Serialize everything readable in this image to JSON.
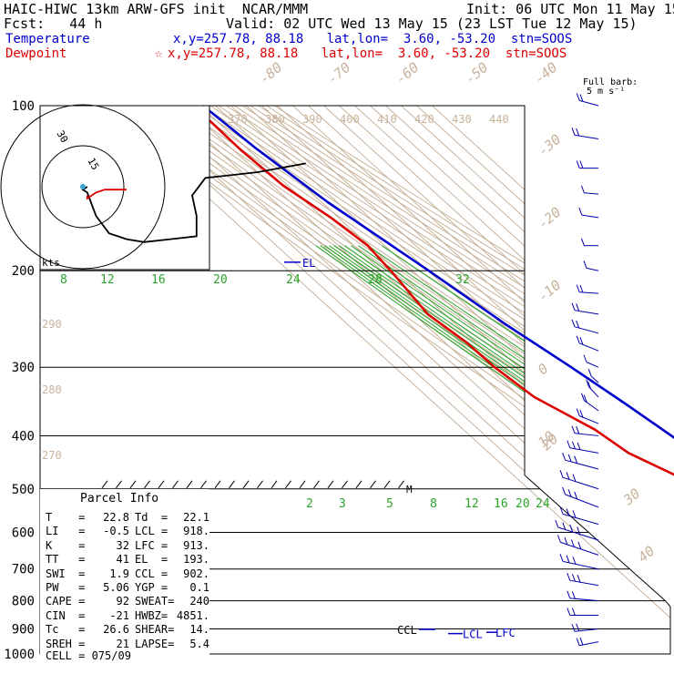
{
  "header": {
    "model_line": "HAIC-HIWC 13km ARW-GFS init  NCAR/MMM",
    "init_line": "Init: 06 UTC Mon 11 May 15",
    "fcst_line": "Fcst:   44 h",
    "valid_line": "Valid: 02 UTC Wed 13 May 15 (23 LST Tue 12 May 15)",
    "temperature_label": "Temperature",
    "temperature_info": "x,y=257.78, 88.18   lat,lon=  3.60, -53.20  stn=SOOS",
    "dewpoint_label": "Dewpoint",
    "dewpoint_star": "☆",
    "dewpoint_info": "x,y=257.78, 88.18   lat,lon=  3.60, -53.20  stn=SOOS",
    "barb_key_line1": "Full barb:",
    "barb_key_line2": "5 m s⁻¹"
  },
  "chart_data": {
    "type": "skew-t",
    "pressure_levels": [
      "100",
      "200",
      "300",
      "400",
      "500",
      "600",
      "700",
      "800",
      "900",
      "1000"
    ],
    "isotherm_labels": [
      "-80",
      "-70",
      "-60",
      "-50",
      "-40",
      "-30",
      "-20",
      "-10",
      "0",
      "10",
      "20",
      "30",
      "40"
    ],
    "theta_labels": [
      "370",
      "380",
      "390",
      "400",
      "410",
      "420",
      "430",
      "440"
    ],
    "theta_side_labels": [
      "290",
      "280",
      "270"
    ],
    "mixing_ratio_labels_upper": [
      "8",
      "12",
      "16",
      "20",
      "24",
      "28",
      "32"
    ],
    "mixing_ratio_labels_lower": [
      "2",
      "3",
      "5",
      "8",
      "12",
      "16",
      "20",
      "24"
    ],
    "temperature_profile_K": [
      [
        100,
        192
      ],
      [
        120,
        196
      ],
      [
        150,
        204
      ],
      [
        200,
        220.5
      ],
      [
        250,
        232
      ],
      [
        300,
        244
      ],
      [
        350,
        253
      ],
      [
        400,
        260
      ],
      [
        500,
        269.5
      ],
      [
        600,
        278
      ],
      [
        700,
        284
      ],
      [
        800,
        289.5
      ],
      [
        870,
        292
      ],
      [
        890,
        294
      ],
      [
        908,
        296
      ]
    ],
    "dewpoint_profile_K": [
      [
        100,
        186
      ],
      [
        120,
        185
      ],
      [
        140,
        187
      ],
      [
        160,
        195
      ],
      [
        180,
        199
      ],
      [
        200,
        196
      ],
      [
        240,
        189
      ],
      [
        270,
        194
      ],
      [
        300,
        194.5
      ],
      [
        340,
        199
      ],
      [
        390,
        215
      ],
      [
        430,
        220
      ],
      [
        480,
        237
      ],
      [
        560,
        264
      ],
      [
        600,
        276
      ],
      [
        650,
        276.5
      ],
      [
        700,
        279
      ],
      [
        780,
        282
      ],
      [
        860,
        291
      ],
      [
        900,
        294
      ],
      [
        908,
        296
      ]
    ],
    "markers": [
      {
        "label": "EL",
        "pressure": 193
      },
      {
        "label": "CCL",
        "pressure": 902
      },
      {
        "label": "LCL",
        "pressure": 918
      },
      {
        "label": "LFC",
        "pressure": 913
      }
    ],
    "level_label_extra": "M",
    "hodograph": {
      "ring_labels": [
        "15",
        "30"
      ],
      "units": "kts",
      "trace_black_uv_kts": [
        [
          51,
          8
        ],
        [
          40,
          5
        ],
        [
          28,
          3
        ],
        [
          25,
          -3
        ],
        [
          26,
          -10
        ],
        [
          26,
          -17
        ],
        [
          20,
          -18
        ],
        [
          14,
          -19
        ],
        [
          10,
          -18
        ],
        [
          6,
          -16
        ],
        [
          3,
          -10
        ],
        [
          1,
          -2
        ],
        [
          0,
          -1
        ],
        [
          1,
          0
        ]
      ],
      "trace_red_uv_kts": [
        [
          10,
          -1
        ],
        [
          5,
          -1
        ],
        [
          3,
          -2
        ],
        [
          2,
          -3
        ],
        [
          1,
          -4
        ],
        [
          1,
          -3
        ]
      ]
    },
    "wind_barbs_kts": [
      [
        100,
        [
          8,
          4
        ]
      ],
      [
        115,
        [
          10,
          3
        ]
      ],
      [
        130,
        [
          8,
          0
        ]
      ],
      [
        145,
        [
          6,
          1
        ]
      ],
      [
        160,
        [
          7,
          2
        ]
      ],
      [
        180,
        [
          6,
          0
        ]
      ],
      [
        200,
        [
          5,
          2
        ]
      ],
      [
        220,
        [
          8,
          1
        ]
      ],
      [
        240,
        [
          10,
          3
        ]
      ],
      [
        260,
        [
          10,
          5
        ]
      ],
      [
        280,
        [
          8,
          6
        ]
      ],
      [
        300,
        [
          5,
          4
        ]
      ],
      [
        320,
        [
          3,
          5
        ]
      ],
      [
        340,
        [
          4,
          8
        ]
      ],
      [
        360,
        [
          6,
          8
        ]
      ],
      [
        380,
        [
          8,
          6
        ]
      ],
      [
        400,
        [
          10,
          2
        ]
      ],
      [
        430,
        [
          12,
          4
        ]
      ],
      [
        460,
        [
          14,
          7
        ]
      ],
      [
        500,
        [
          15,
          9
        ]
      ],
      [
        540,
        [
          14,
          10
        ]
      ],
      [
        580,
        [
          15,
          8
        ]
      ],
      [
        620,
        [
          17,
          10
        ]
      ],
      [
        660,
        [
          16,
          10
        ]
      ],
      [
        700,
        [
          15,
          6
        ]
      ],
      [
        750,
        [
          12,
          4
        ]
      ],
      [
        800,
        [
          12,
          2
        ]
      ],
      [
        850,
        [
          12,
          0
        ]
      ],
      [
        900,
        [
          10,
          -2
        ]
      ],
      [
        950,
        [
          8,
          -3
        ]
      ]
    ]
  },
  "parcel_info": {
    "title": "Parcel Info",
    "rows": [
      [
        "T    =",
        "22.8",
        "Td  =",
        "22.1"
      ],
      [
        "LI   =",
        "-0.5",
        "LCL =",
        "918."
      ],
      [
        "K    =",
        "32",
        "LFC =",
        "913."
      ],
      [
        "TT   =",
        "41",
        "EL  =",
        "193."
      ],
      [
        "SWI  =",
        "1.9",
        "CCL =",
        "902."
      ],
      [
        "PW   =",
        "5.06",
        "YGP =",
        "0.1"
      ],
      [
        "CAPE =",
        "92",
        "SWEAT=",
        "240"
      ],
      [
        "CIN  =",
        "-21",
        "HWBZ=",
        "4851."
      ],
      [
        "Tc   =",
        "26.6",
        "SHEAR=",
        "14."
      ],
      [
        "SREH =",
        "21",
        "LAPSE=",
        "5.4"
      ]
    ],
    "cell": "CELL = 075/09"
  },
  "colors": {
    "temperature": "#0000cc",
    "dewpoint": "#dd0000",
    "isotherm": "#c8b29a",
    "moist_adiabat": "#2aa52a",
    "mixing_ratio": "#2aa52a",
    "isobar": "#000000"
  }
}
